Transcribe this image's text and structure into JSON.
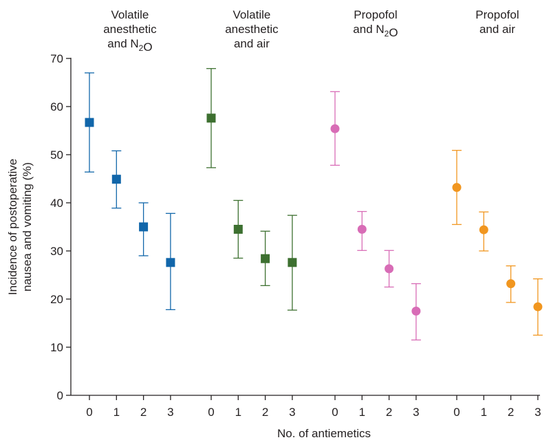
{
  "chart_data": {
    "type": "scatter",
    "title": "",
    "xlabel": "No. of antiemetics",
    "ylabel": [
      "Incidence of postoperative",
      "nausea and vomiting (%)"
    ],
    "ylim": [
      0,
      70
    ],
    "yticks": [
      0,
      10,
      20,
      30,
      40,
      50,
      60,
      70
    ],
    "categories": [
      "0",
      "1",
      "2",
      "3"
    ],
    "grid": false,
    "legend": "none",
    "groups": [
      {
        "title_lines": [
          [
            {
              "t": "Volatile"
            }
          ],
          [
            {
              "t": "anesthetic"
            }
          ],
          [
            {
              "t": "and N"
            },
            {
              "t": "2",
              "sub": true
            },
            {
              "t": "O"
            }
          ]
        ],
        "color": "#1166aa",
        "marker": "square",
        "points": [
          {
            "x": "0",
            "y": 56.7,
            "low": 46.4,
            "high": 67.0
          },
          {
            "x": "1",
            "y": 44.9,
            "low": 38.9,
            "high": 50.8
          },
          {
            "x": "2",
            "y": 35.0,
            "low": 29.0,
            "high": 40.0
          },
          {
            "x": "3",
            "y": 27.6,
            "low": 17.8,
            "high": 37.8
          }
        ]
      },
      {
        "title_lines": [
          [
            {
              "t": "Volatile"
            }
          ],
          [
            {
              "t": "anesthetic"
            }
          ],
          [
            {
              "t": "and air"
            }
          ]
        ],
        "color": "#3d7030",
        "marker": "square",
        "points": [
          {
            "x": "0",
            "y": 57.6,
            "low": 47.3,
            "high": 67.9
          },
          {
            "x": "1",
            "y": 34.5,
            "low": 28.5,
            "high": 40.5
          },
          {
            "x": "2",
            "y": 28.4,
            "low": 22.8,
            "high": 34.1
          },
          {
            "x": "3",
            "y": 27.6,
            "low": 17.7,
            "high": 37.4
          }
        ]
      },
      {
        "title_lines": [
          [
            {
              "t": "Propofol"
            }
          ],
          [
            {
              "t": "and N"
            },
            {
              "t": "2",
              "sub": true
            },
            {
              "t": "O"
            }
          ]
        ],
        "color": "#d86cb6",
        "marker": "circle",
        "points": [
          {
            "x": "0",
            "y": 55.4,
            "low": 47.8,
            "high": 63.1
          },
          {
            "x": "1",
            "y": 34.5,
            "low": 30.1,
            "high": 38.2
          },
          {
            "x": "2",
            "y": 26.3,
            "low": 22.5,
            "high": 30.1
          },
          {
            "x": "3",
            "y": 17.5,
            "low": 11.5,
            "high": 23.2
          }
        ]
      },
      {
        "title_lines": [
          [
            {
              "t": "Propofol"
            }
          ],
          [
            {
              "t": "and air"
            }
          ]
        ],
        "color": "#f1961f",
        "marker": "circle",
        "points": [
          {
            "x": "0",
            "y": 43.2,
            "low": 35.5,
            "high": 50.9
          },
          {
            "x": "1",
            "y": 34.4,
            "low": 30.0,
            "high": 38.1
          },
          {
            "x": "2",
            "y": 23.2,
            "low": 19.3,
            "high": 26.9
          },
          {
            "x": "3",
            "y": 18.4,
            "low": 12.5,
            "high": 24.2
          }
        ]
      }
    ]
  }
}
